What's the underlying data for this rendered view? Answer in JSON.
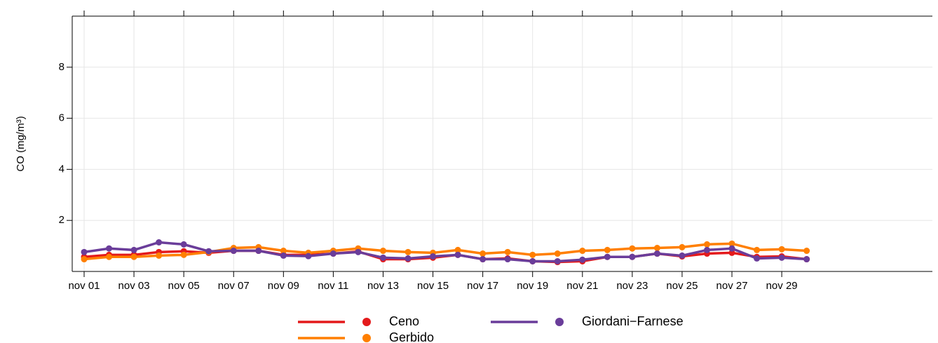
{
  "chart_data": {
    "type": "line",
    "y_label": "CO (mg/m³)",
    "categories": [
      "nov 01",
      null,
      "nov 03",
      null,
      "nov 05",
      null,
      "nov 07",
      null,
      "nov 09",
      null,
      "nov 11",
      null,
      "nov 13",
      null,
      "nov 15",
      null,
      "nov 17",
      null,
      "nov 19",
      null,
      "nov 21",
      null,
      "nov 23",
      null,
      "nov 25",
      null,
      "nov 27",
      null,
      "nov 29",
      null
    ],
    "series": [
      {
        "name": "Ceno",
        "color": "#e41a1c",
        "values": [
          0.57,
          0.65,
          0.65,
          0.76,
          0.79,
          0.73,
          0.81,
          0.81,
          0.65,
          0.65,
          0.7,
          0.78,
          0.48,
          0.48,
          0.54,
          0.65,
          0.48,
          0.51,
          0.4,
          0.37,
          0.4,
          0.57,
          0.57,
          0.7,
          0.59,
          0.7,
          0.73,
          0.57,
          0.59,
          0.48
        ]
      },
      {
        "name": "Gerbido",
        "color": "#ff7f00",
        "values": [
          0.48,
          0.57,
          0.57,
          0.62,
          0.65,
          0.76,
          0.92,
          0.95,
          0.81,
          0.73,
          0.81,
          0.9,
          0.81,
          0.76,
          0.73,
          0.84,
          0.7,
          0.76,
          0.65,
          0.7,
          0.81,
          0.84,
          0.9,
          0.92,
          0.95,
          1.06,
          1.09,
          0.84,
          0.87,
          0.81
        ]
      },
      {
        "name": "Giordani−Farnese",
        "color": "#6a3d9a",
        "values": [
          0.76,
          0.9,
          0.84,
          1.14,
          1.06,
          0.79,
          0.81,
          0.81,
          0.62,
          0.6,
          0.7,
          0.76,
          0.54,
          0.51,
          0.59,
          0.65,
          0.48,
          0.48,
          0.4,
          0.4,
          0.46,
          0.57,
          0.57,
          0.7,
          0.62,
          0.84,
          0.9,
          0.51,
          0.54,
          0.48
        ]
      }
    ],
    "ylim": [
      0,
      10
    ],
    "yticks": [
      2,
      4,
      6,
      8
    ],
    "grid": true
  }
}
